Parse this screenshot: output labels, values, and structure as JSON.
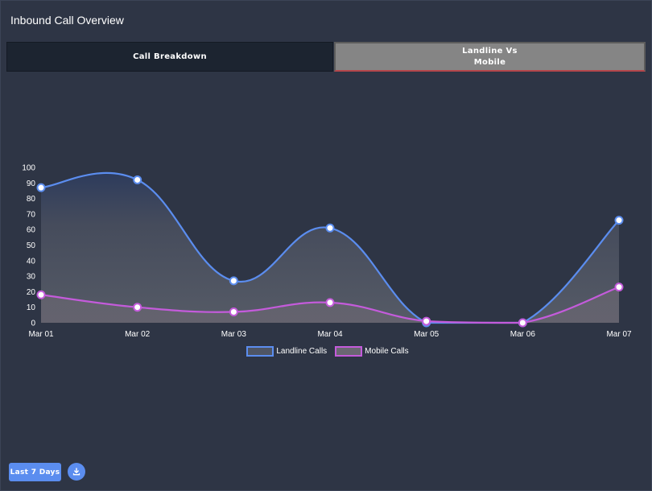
{
  "header": {
    "title": "Inbound Call Overview"
  },
  "tabs": [
    {
      "label": "Call Breakdown",
      "active": false
    },
    {
      "label": "Landline Vs\nMobile",
      "active": true
    }
  ],
  "controls": {
    "range_label": "Last 7 Days",
    "download_icon": "download-icon"
  },
  "colors": {
    "landline": "#5b8def",
    "mobile": "#c45bdb",
    "background": "#2e3545"
  },
  "chart_data": {
    "type": "area",
    "categories": [
      "Mar 01",
      "Mar 02",
      "Mar 03",
      "Mar 04",
      "Mar 05",
      "Mar 06",
      "Mar 07"
    ],
    "series": [
      {
        "name": "Landline Calls",
        "values": [
          87,
          92,
          27,
          61,
          0,
          0,
          66
        ]
      },
      {
        "name": "Mobile Calls",
        "values": [
          18,
          10,
          7,
          13,
          1,
          0,
          23
        ]
      }
    ],
    "ylim": [
      0,
      100
    ],
    "yticks": [
      0,
      10,
      20,
      30,
      40,
      50,
      60,
      70,
      80,
      90,
      100
    ],
    "grid": false,
    "legend": "bottom-center",
    "curve": "smooth"
  }
}
